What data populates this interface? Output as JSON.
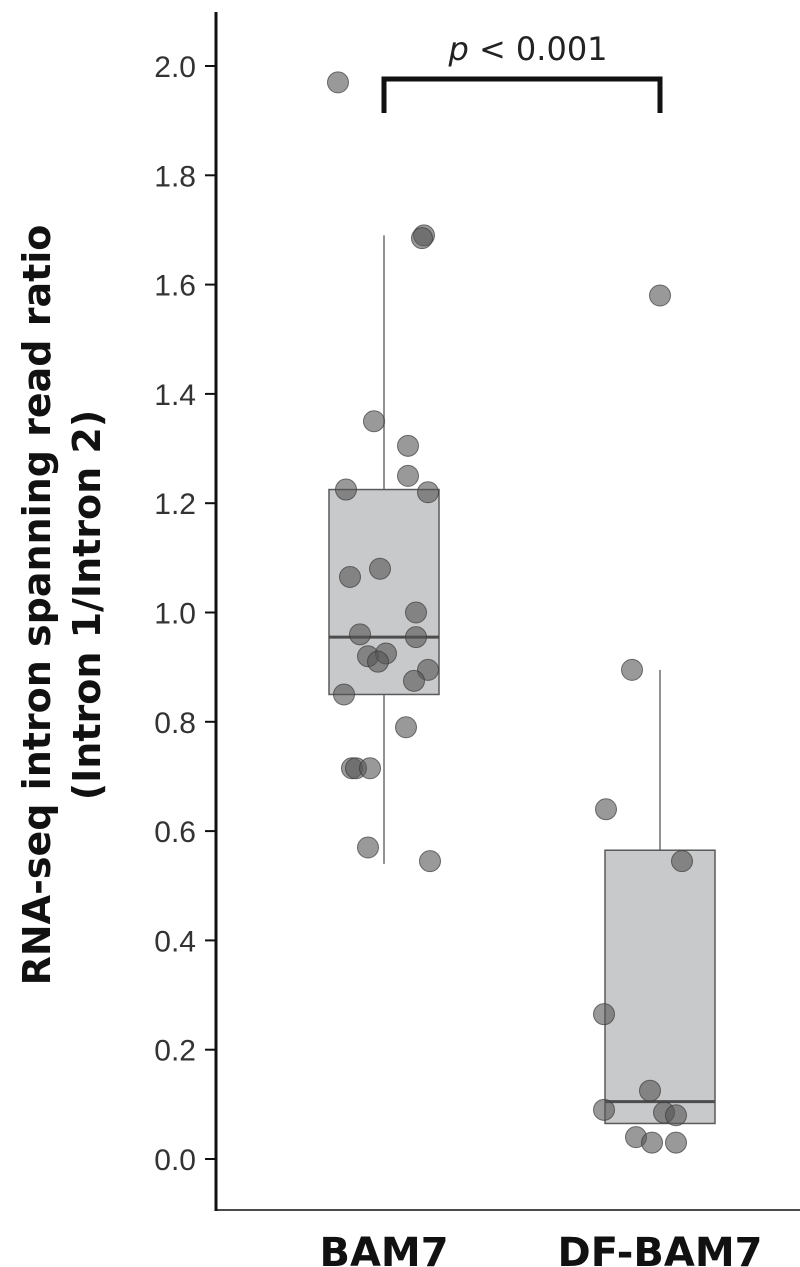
{
  "chart_data": {
    "type": "box",
    "ylabel_line1": "RNA-seq intron spanning read ratio",
    "ylabel_line2": "(Intron 1/Intron 2)",
    "xlabel": "",
    "ylim": [
      -0.09,
      2.1
    ],
    "yticks": [
      "0.0",
      "0.2",
      "0.4",
      "0.6",
      "0.8",
      "1.0",
      "1.2",
      "1.4",
      "1.6",
      "1.8",
      "2.0"
    ],
    "categories": [
      "BAM7",
      "DF-BAM7"
    ],
    "significance": {
      "p_italic": "p",
      "p_rest": " < 0.001",
      "between": [
        "BAM7",
        "DF-BAM7"
      ]
    },
    "boxes": [
      {
        "category": "BAM7",
        "whisker_low": 0.54,
        "q1": 0.85,
        "median": 0.955,
        "q3": 1.225,
        "whisker_high": 1.69
      },
      {
        "category": "DF-BAM7",
        "whisker_low": 0.065,
        "q1": 0.065,
        "median": 0.105,
        "q3": 0.565,
        "whisker_high": 0.895
      }
    ],
    "points": [
      {
        "category": "BAM7",
        "jitter": -0.23,
        "y": 1.97
      },
      {
        "category": "BAM7",
        "jitter": 0.2,
        "y": 1.69
      },
      {
        "category": "BAM7",
        "jitter": 0.19,
        "y": 1.685
      },
      {
        "category": "BAM7",
        "jitter": -0.05,
        "y": 1.35
      },
      {
        "category": "BAM7",
        "jitter": 0.12,
        "y": 1.305
      },
      {
        "category": "BAM7",
        "jitter": 0.12,
        "y": 1.25
      },
      {
        "category": "BAM7",
        "jitter": -0.19,
        "y": 1.225
      },
      {
        "category": "BAM7",
        "jitter": 0.22,
        "y": 1.22
      },
      {
        "category": "BAM7",
        "jitter": -0.02,
        "y": 1.08
      },
      {
        "category": "BAM7",
        "jitter": -0.17,
        "y": 1.065
      },
      {
        "category": "BAM7",
        "jitter": 0.16,
        "y": 1.0
      },
      {
        "category": "BAM7",
        "jitter": -0.12,
        "y": 0.96
      },
      {
        "category": "BAM7",
        "jitter": 0.16,
        "y": 0.955
      },
      {
        "category": "BAM7",
        "jitter": -0.08,
        "y": 0.92
      },
      {
        "category": "BAM7",
        "jitter": 0.01,
        "y": 0.925
      },
      {
        "category": "BAM7",
        "jitter": -0.03,
        "y": 0.91
      },
      {
        "category": "BAM7",
        "jitter": 0.22,
        "y": 0.895
      },
      {
        "category": "BAM7",
        "jitter": 0.15,
        "y": 0.875
      },
      {
        "category": "BAM7",
        "jitter": -0.2,
        "y": 0.85
      },
      {
        "category": "BAM7",
        "jitter": 0.11,
        "y": 0.79
      },
      {
        "category": "BAM7",
        "jitter": -0.16,
        "y": 0.715
      },
      {
        "category": "BAM7",
        "jitter": -0.14,
        "y": 0.715
      },
      {
        "category": "BAM7",
        "jitter": -0.07,
        "y": 0.715
      },
      {
        "category": "BAM7",
        "jitter": -0.08,
        "y": 0.57
      },
      {
        "category": "BAM7",
        "jitter": 0.23,
        "y": 0.545
      },
      {
        "category": "DF-BAM7",
        "jitter": 0.0,
        "y": 1.58
      },
      {
        "category": "DF-BAM7",
        "jitter": -0.14,
        "y": 0.895
      },
      {
        "category": "DF-BAM7",
        "jitter": -0.27,
        "y": 0.64
      },
      {
        "category": "DF-BAM7",
        "jitter": 0.11,
        "y": 0.545
      },
      {
        "category": "DF-BAM7",
        "jitter": -0.28,
        "y": 0.265
      },
      {
        "category": "DF-BAM7",
        "jitter": -0.05,
        "y": 0.125
      },
      {
        "category": "DF-BAM7",
        "jitter": -0.28,
        "y": 0.09
      },
      {
        "category": "DF-BAM7",
        "jitter": 0.02,
        "y": 0.085
      },
      {
        "category": "DF-BAM7",
        "jitter": 0.08,
        "y": 0.08
      },
      {
        "category": "DF-BAM7",
        "jitter": -0.12,
        "y": 0.04
      },
      {
        "category": "DF-BAM7",
        "jitter": -0.04,
        "y": 0.03
      },
      {
        "category": "DF-BAM7",
        "jitter": 0.08,
        "y": 0.03
      }
    ],
    "colors": {
      "box_fill": "#c8c9cb",
      "box_stroke": "#5a5a5a",
      "median": "#4d4d4d",
      "whisker": "#6e6e6e",
      "point_fill": "#555555",
      "point_opacity": 0.6,
      "axis": "#111111"
    },
    "grid": false,
    "legend": "none"
  }
}
